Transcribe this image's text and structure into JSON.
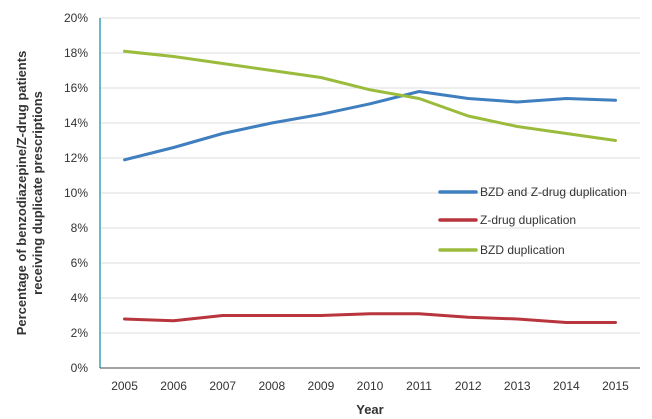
{
  "chart_data": {
    "type": "line",
    "title": "",
    "xlabel": "Year",
    "ylabel": "Percentage of benzodiazepine/Z-drug patients receiving duplicate prescriptions",
    "ylabel_lines": [
      "Percentage of benzodiazepine/Z-drug patients",
      "receiving duplicate prescriptions"
    ],
    "x": [
      "2005",
      "2006",
      "2007",
      "2008",
      "2009",
      "2010",
      "2011",
      "2012",
      "2013",
      "2014",
      "2015"
    ],
    "ylim": [
      0,
      20
    ],
    "y_ticks": [
      "0%",
      "2%",
      "4%",
      "6%",
      "8%",
      "10%",
      "12%",
      "14%",
      "16%",
      "18%",
      "20%"
    ],
    "grid": true,
    "legend_position": "right",
    "series": [
      {
        "name": "BZD and Z-drug duplication",
        "color": "#3f7fbf",
        "values": [
          11.9,
          12.6,
          13.4,
          14.0,
          14.5,
          15.1,
          15.8,
          15.4,
          15.2,
          15.4,
          15.3
        ]
      },
      {
        "name": "Z-drug duplication",
        "color": "#b8353d",
        "values": [
          2.8,
          2.7,
          3.0,
          3.0,
          3.0,
          3.1,
          3.1,
          2.9,
          2.8,
          2.6,
          2.6
        ]
      },
      {
        "name": "BZD duplication",
        "color": "#9bbb3c",
        "values": [
          18.1,
          17.8,
          17.4,
          17.0,
          16.6,
          15.9,
          15.4,
          14.4,
          13.8,
          13.4,
          13.0
        ]
      }
    ]
  }
}
